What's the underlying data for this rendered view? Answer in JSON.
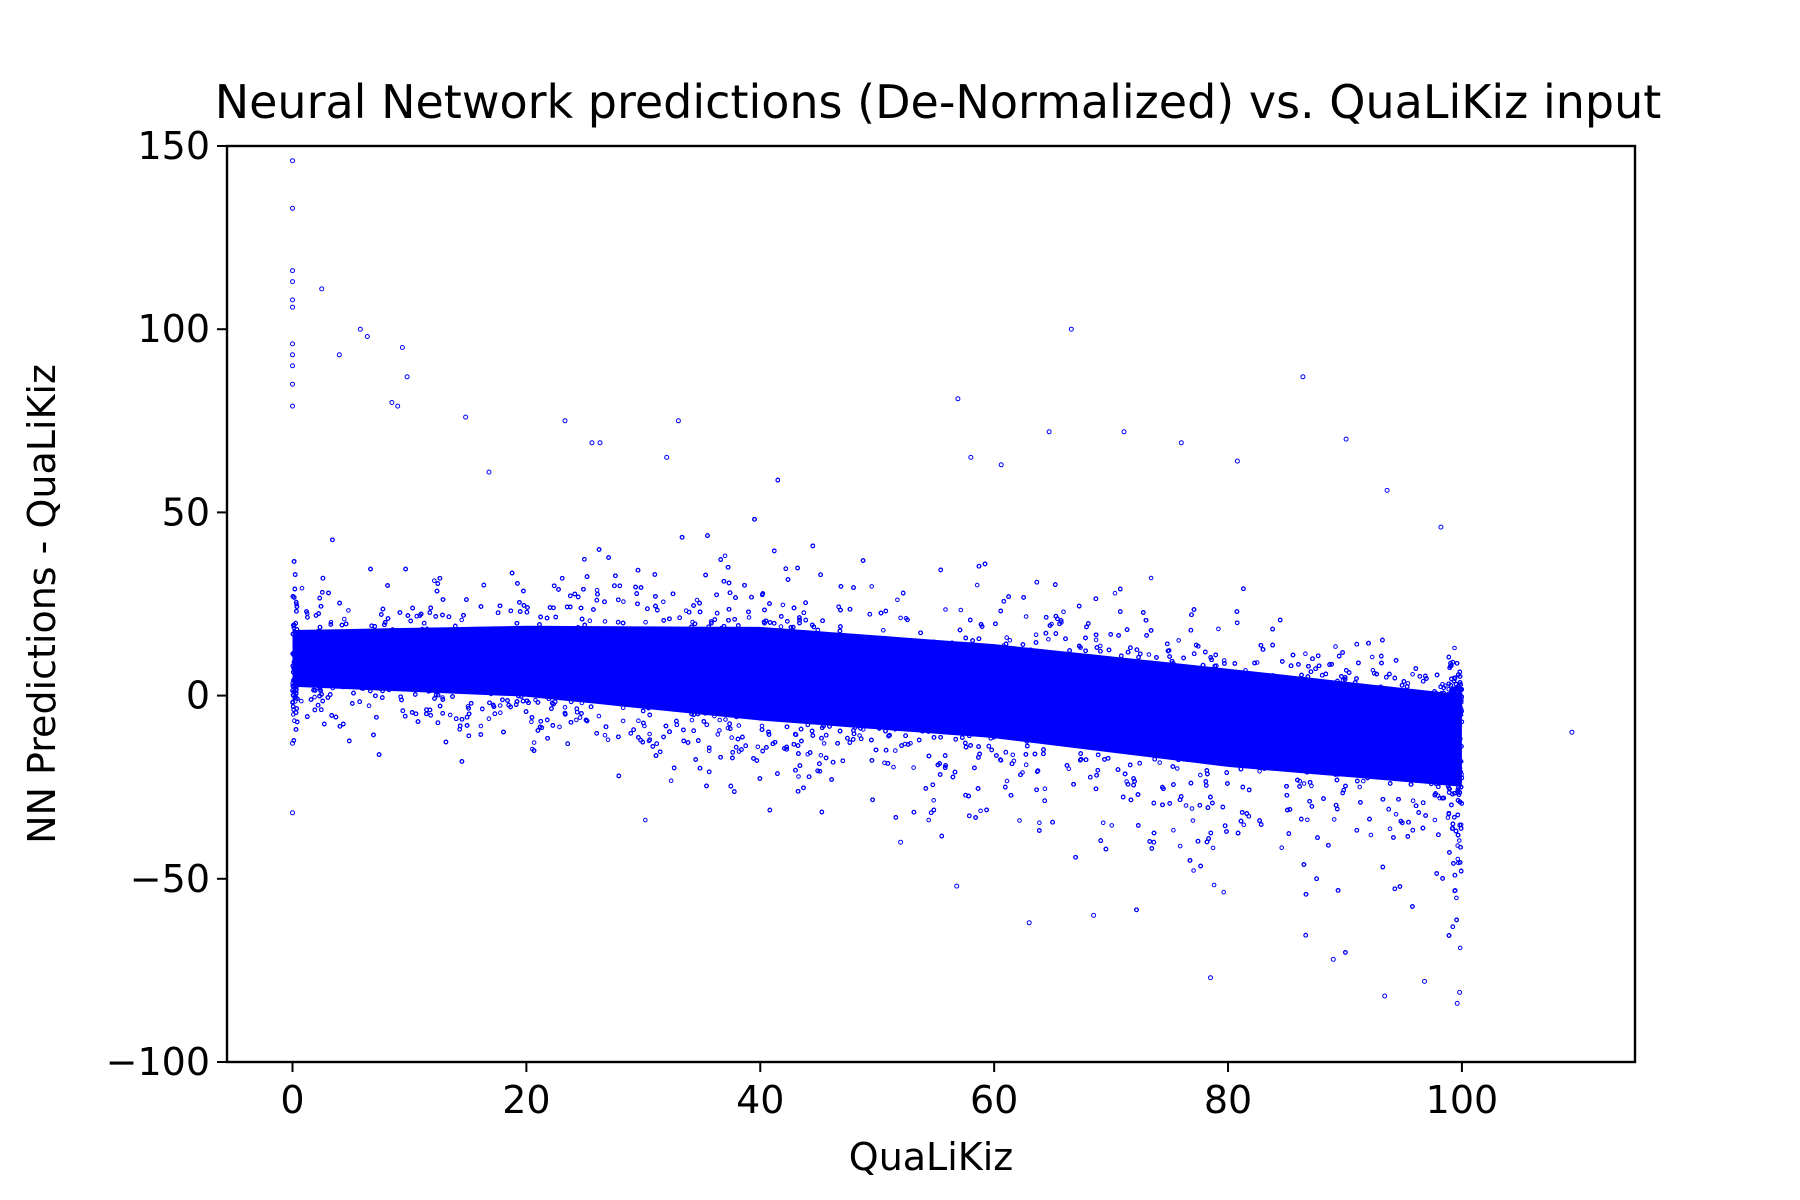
{
  "chart_data": {
    "type": "scatter",
    "title": "Neural Network predictions (De-Normalized) vs. QuaLiKiz input",
    "xlabel": "QuaLiKiz",
    "ylabel": "NN Predictions - QuaLiKiz",
    "xlim": [
      -5.6,
      114.8
    ],
    "ylim": [
      -100,
      150
    ],
    "xticks": [
      0,
      20,
      40,
      60,
      80,
      100
    ],
    "yticks": [
      -100,
      -50,
      0,
      50,
      100,
      150
    ],
    "xtick_labels": [
      "0",
      "20",
      "40",
      "60",
      "80",
      "100"
    ],
    "ytick_labels": [
      "−100",
      "−50",
      "0",
      "50",
      "100",
      "150"
    ],
    "grid": false,
    "legend": "none",
    "marker": "small hollow circle",
    "color": "#0000ff",
    "series": [
      {
        "points_note": "dense cloud, x in [0,100]; center ~8 at x=0 trending to ~-5 at x=100; spread widening with x",
        "envelope": [
          {
            "x": 0,
            "center": 8,
            "lower": -8,
            "upper": 30
          },
          {
            "x": 20,
            "center": 6,
            "lower": -12,
            "upper": 35
          },
          {
            "x": 40,
            "center": 3,
            "lower": -25,
            "upper": 38
          },
          {
            "x": 60,
            "center": 1,
            "lower": -35,
            "upper": 30
          },
          {
            "x": 80,
            "center": -3,
            "lower": -50,
            "upper": 20
          },
          {
            "x": 100,
            "center": -6,
            "lower": -60,
            "upper": 8
          }
        ],
        "outliers": [
          [
            0,
            146
          ],
          [
            0,
            133
          ],
          [
            0,
            116
          ],
          [
            0,
            113
          ],
          [
            0,
            108
          ],
          [
            0,
            106
          ],
          [
            0,
            96
          ],
          [
            0,
            93
          ],
          [
            0,
            90
          ],
          [
            0,
            85
          ],
          [
            0,
            79
          ],
          [
            0,
            -13
          ],
          [
            0,
            -32
          ],
          [
            2.5,
            111
          ],
          [
            4,
            93
          ],
          [
            5.8,
            100
          ],
          [
            6.4,
            98
          ],
          [
            9.4,
            95
          ],
          [
            9.8,
            87
          ],
          [
            8.5,
            80
          ],
          [
            9.0,
            79
          ],
          [
            14.8,
            76
          ],
          [
            16.8,
            61
          ],
          [
            23.3,
            75
          ],
          [
            25.6,
            69
          ],
          [
            26.3,
            69
          ],
          [
            33.0,
            75
          ],
          [
            32.0,
            65
          ],
          [
            56.9,
            81
          ],
          [
            58.0,
            65
          ],
          [
            60.6,
            63
          ],
          [
            64.7,
            72
          ],
          [
            66.6,
            100
          ],
          [
            71.1,
            72
          ],
          [
            76.0,
            69
          ],
          [
            80.8,
            64
          ],
          [
            86.4,
            87
          ],
          [
            90.1,
            70
          ],
          [
            93.6,
            56
          ],
          [
            98.2,
            46
          ],
          [
            109.4,
            -10
          ],
          [
            63.0,
            -62
          ],
          [
            68.5,
            -60
          ],
          [
            78.5,
            -77
          ],
          [
            89.0,
            -72
          ],
          [
            93.4,
            -82
          ],
          [
            96.8,
            -78
          ],
          [
            99.6,
            -84
          ],
          [
            99.8,
            -81
          ],
          [
            52.0,
            -40
          ],
          [
            56.8,
            -52
          ]
        ]
      }
    ]
  }
}
